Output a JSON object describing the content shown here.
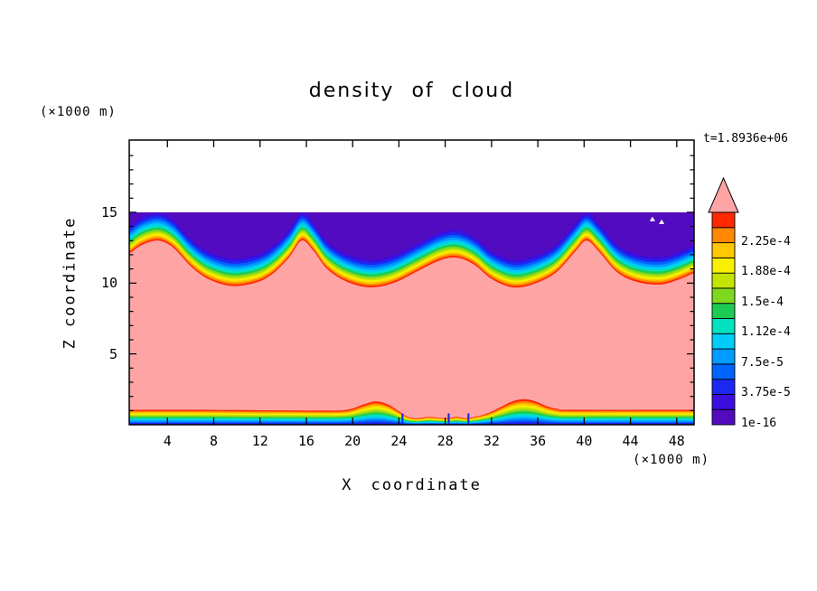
{
  "chart_data": {
    "type": "filled_contour",
    "title": "density of cloud",
    "xlabel": "X coordinate",
    "ylabel": "Z coordinate",
    "x_unit_label": "(×1000 m)",
    "z_unit_label": "(×1000 m)",
    "time_label": "t=1.8936e+06",
    "x_ticks": [
      4,
      8,
      12,
      16,
      20,
      24,
      28,
      32,
      36,
      40,
      44,
      48
    ],
    "z_ticks": [
      5,
      10,
      15
    ],
    "x_range": [
      0.7,
      49.5
    ],
    "z_range": [
      0,
      20.1
    ],
    "cloud_top_z": 15,
    "colorbar": {
      "boundary_labels": [
        "1e-16",
        "3.75e-5",
        "7.5e-5",
        "1.12e-4",
        "1.5e-4",
        "1.88e-4",
        "2.25e-4"
      ],
      "colors": [
        "#520bbe",
        "#3b0edf",
        "#1c28f0",
        "#0064ff",
        "#009cff",
        "#00ccf8",
        "#00e2c0",
        "#1ecb52",
        "#7fd820",
        "#c3e400",
        "#f8f000",
        "#ffc800",
        "#ff8800",
        "#ff2800"
      ],
      "arrow_color": "#ffa4a4"
    },
    "interior_color": "#ffa4a4",
    "top_profile": [
      [
        0.7,
        12.1
      ],
      [
        1.8,
        12.7
      ],
      [
        3.2,
        13.0
      ],
      [
        4.5,
        12.5
      ],
      [
        6,
        11.2
      ],
      [
        7.5,
        10.3
      ],
      [
        9.5,
        9.8
      ],
      [
        11.5,
        10.0
      ],
      [
        13,
        10.6
      ],
      [
        14.5,
        11.8
      ],
      [
        15.6,
        13.0
      ],
      [
        16.6,
        12.3
      ],
      [
        17.8,
        11.0
      ],
      [
        19.5,
        10.1
      ],
      [
        21.5,
        9.7
      ],
      [
        23.5,
        10.0
      ],
      [
        25.5,
        10.8
      ],
      [
        27.5,
        11.6
      ],
      [
        29,
        11.8
      ],
      [
        30.5,
        11.3
      ],
      [
        32,
        10.3
      ],
      [
        33.8,
        9.7
      ],
      [
        35.5,
        9.9
      ],
      [
        37.5,
        10.7
      ],
      [
        39.2,
        12.2
      ],
      [
        40.2,
        13.0
      ],
      [
        41.3,
        12.2
      ],
      [
        42.8,
        10.8
      ],
      [
        44.5,
        10.1
      ],
      [
        46.5,
        9.9
      ],
      [
        48,
        10.2
      ],
      [
        49.5,
        10.7
      ]
    ],
    "bottom_profile": [
      [
        0.7,
        1.05
      ],
      [
        6,
        1.05
      ],
      [
        12,
        1.02
      ],
      [
        17,
        1.0
      ],
      [
        19.5,
        1.05
      ],
      [
        21,
        1.45
      ],
      [
        22,
        1.65
      ],
      [
        23,
        1.45
      ],
      [
        24,
        0.95
      ],
      [
        24.8,
        0.55
      ],
      [
        25.6,
        0.45
      ],
      [
        26.5,
        0.55
      ],
      [
        27.3,
        0.5
      ],
      [
        28.2,
        0.45
      ],
      [
        29,
        0.55
      ],
      [
        29.8,
        0.45
      ],
      [
        30.8,
        0.6
      ],
      [
        31.8,
        0.85
      ],
      [
        32.8,
        1.25
      ],
      [
        33.8,
        1.65
      ],
      [
        34.8,
        1.8
      ],
      [
        35.8,
        1.65
      ],
      [
        36.8,
        1.3
      ],
      [
        37.8,
        1.1
      ],
      [
        39,
        1.05
      ],
      [
        49.5,
        1.05
      ]
    ],
    "top_offsets": [
      1.95,
      1.76,
      1.58,
      1.4,
      1.23,
      1.07,
      0.92,
      0.77,
      0.63,
      0.5,
      0.37,
      0.25,
      0.12
    ],
    "bottom_fracs": [
      0.0,
      0.05,
      0.12,
      0.2,
      0.28,
      0.36,
      0.44,
      0.52,
      0.6,
      0.68,
      0.76,
      0.84,
      0.92
    ],
    "white_specks": [
      [
        45.9,
        14.5
      ],
      [
        46.7,
        14.3
      ]
    ],
    "bottom_notches": [
      24.3,
      28.3,
      30.0
    ]
  }
}
